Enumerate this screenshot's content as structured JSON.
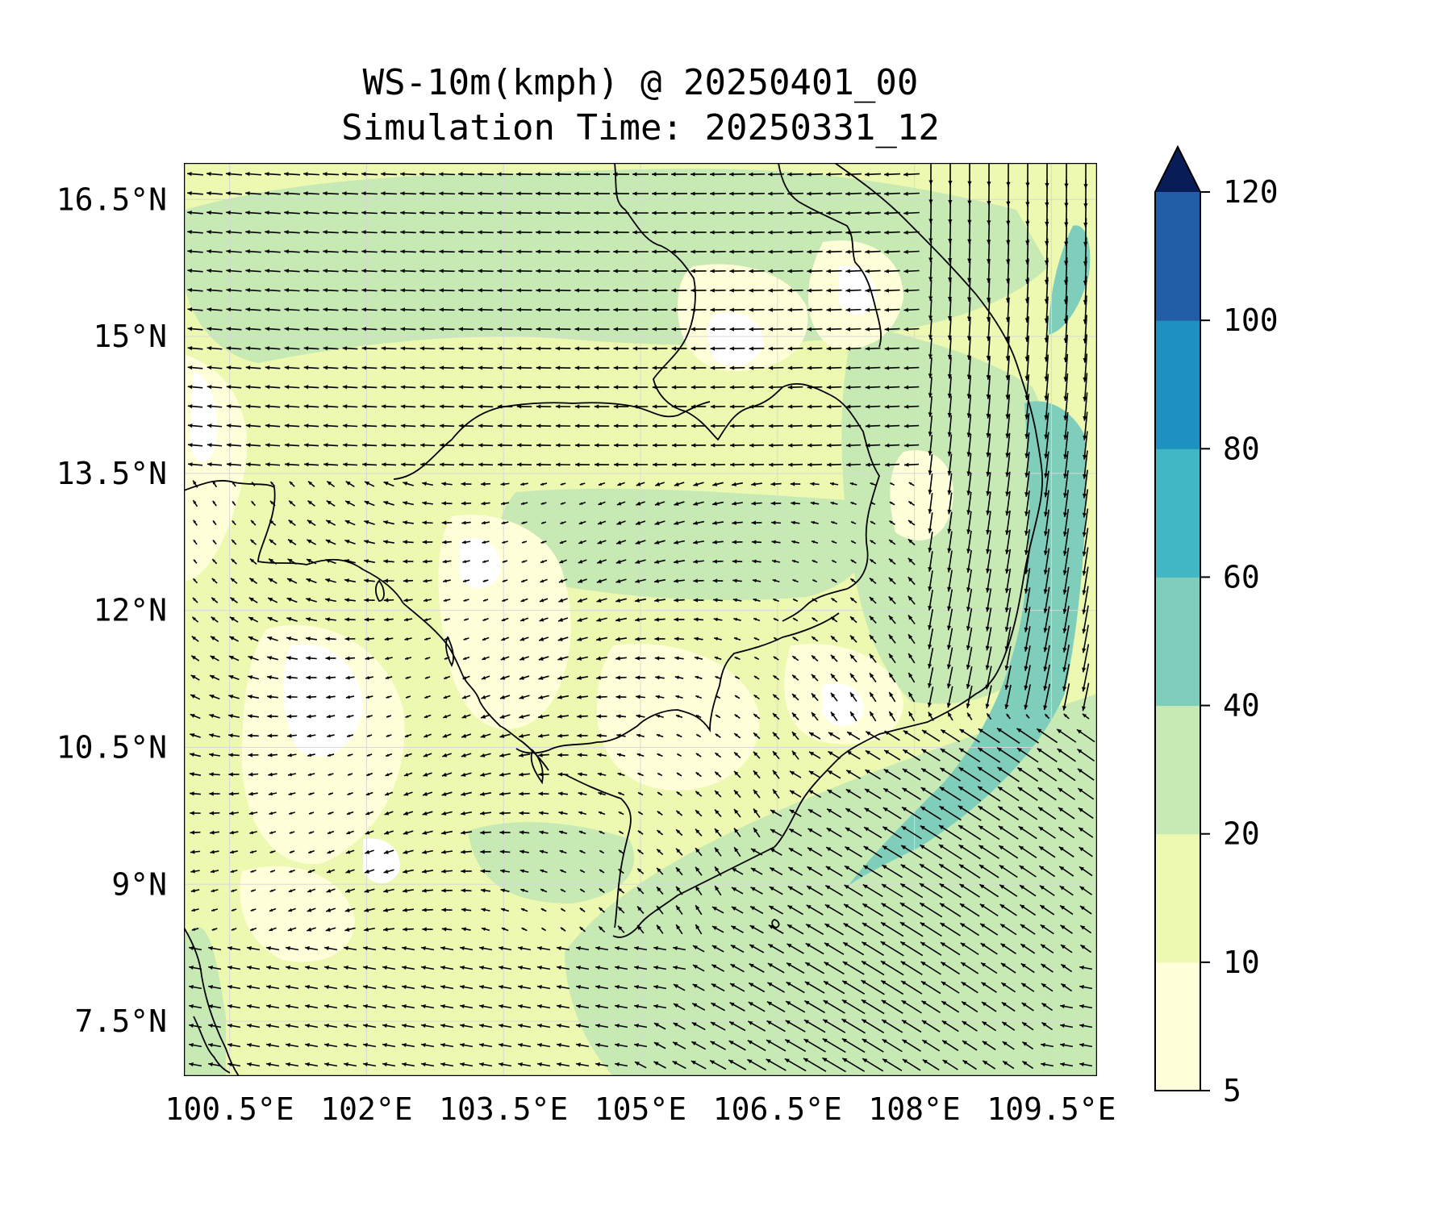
{
  "title": {
    "line1": "WS-10m(kmph) @ 20250401_00",
    "line2": "Simulation Time: 20250331_12"
  },
  "map": {
    "variable": "10 m wind speed",
    "units": "kmph",
    "lon_range": [
      100.0,
      110.0
    ],
    "lat_range": [
      6.9,
      16.9
    ],
    "lon_ticks": [
      {
        "value": 100.5,
        "label": "100.5°E"
      },
      {
        "value": 102.0,
        "label": "102°E"
      },
      {
        "value": 103.5,
        "label": "103.5°E"
      },
      {
        "value": 105.0,
        "label": "105°E"
      },
      {
        "value": 106.5,
        "label": "106.5°E"
      },
      {
        "value": 108.0,
        "label": "108°E"
      },
      {
        "value": 109.5,
        "label": "109.5°E"
      }
    ],
    "lat_ticks": [
      {
        "value": 16.5,
        "label": "16.5°N"
      },
      {
        "value": 15.0,
        "label": "15°N"
      },
      {
        "value": 13.5,
        "label": "13.5°N"
      },
      {
        "value": 12.0,
        "label": "12°N"
      },
      {
        "value": 10.5,
        "label": "10.5°N"
      },
      {
        "value": 9.0,
        "label": "9°N"
      },
      {
        "value": 7.5,
        "label": "7.5°N"
      }
    ],
    "grid": true,
    "wind_vectors": true,
    "coastlines_and_borders": true
  },
  "colorbar": {
    "position": "right",
    "extend": "max",
    "levels": [
      {
        "label": "5",
        "value": 5
      },
      {
        "label": "10",
        "value": 10
      },
      {
        "label": "20",
        "value": 20
      },
      {
        "label": "40",
        "value": 40
      },
      {
        "label": "60",
        "value": 60
      },
      {
        "label": "80",
        "value": 80
      },
      {
        "label": "100",
        "value": 100
      },
      {
        "label": "120",
        "value": 120
      }
    ],
    "colors": [
      "#ffffd9",
      "#edf8b1",
      "#c7e9b4",
      "#7fcdbb",
      "#41b6c4",
      "#1d91c0",
      "#225ea8",
      "#253494"
    ],
    "extend_color": "#081d58"
  },
  "colors": {
    "calm": "#ffffff",
    "low": "#ffffd9",
    "light": "#edf8b1",
    "moderate": "#c7e9b4",
    "strong": "#7fcdbb",
    "arrow": "#000000",
    "border": "#000000"
  }
}
